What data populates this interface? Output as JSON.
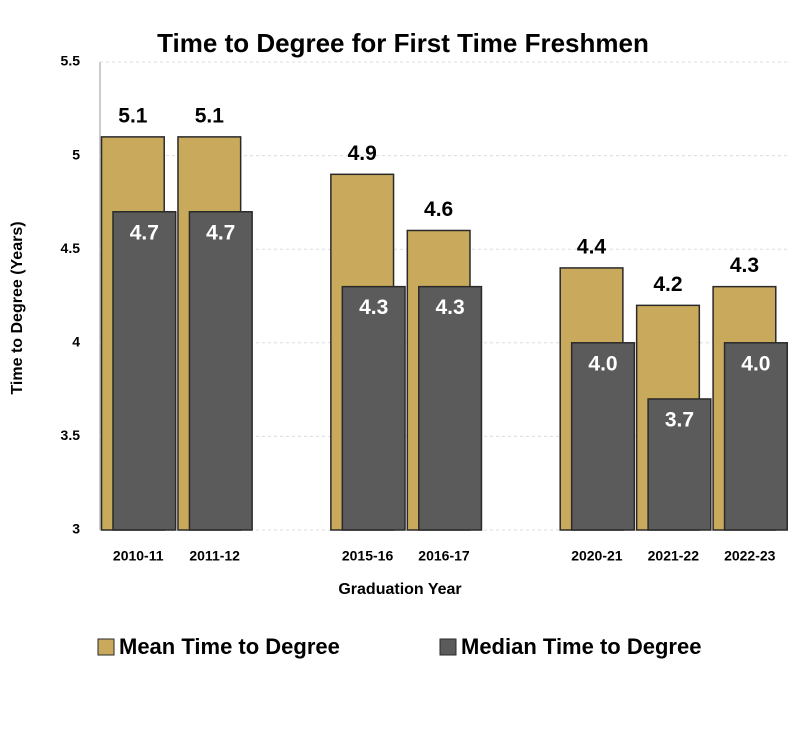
{
  "chart_data": {
    "type": "bar",
    "title": "Time to Degree for First Time Freshmen",
    "x_label": "Graduation Year",
    "y_label": "Time to Degree (Years)",
    "categories": [
      "2010-11",
      "2011-12",
      null,
      "2015-16",
      "2016-17",
      null,
      "2020-21",
      "2021-22",
      "2022-23"
    ],
    "series": [
      {
        "name": "Mean Time to Degree",
        "color": "#c9aa5c",
        "values": [
          5.1,
          5.1,
          null,
          4.9,
          4.6,
          null,
          4.4,
          4.2,
          4.3
        ]
      },
      {
        "name": "Median Time to Degree",
        "color": "#5b5b5b",
        "values": [
          4.7,
          4.7,
          null,
          4.3,
          4.3,
          null,
          4.0,
          3.7,
          4.0
        ],
        "value_labels": [
          "4.7",
          "4.7",
          null,
          "4.3",
          "4.3",
          null,
          "4.0",
          "3.7",
          "4.0"
        ]
      }
    ],
    "ylim": [
      3,
      5.5
    ],
    "yticks": [
      3,
      3.5,
      4,
      4.5,
      5,
      5.5
    ],
    "grid": true,
    "legend": "bottom"
  }
}
